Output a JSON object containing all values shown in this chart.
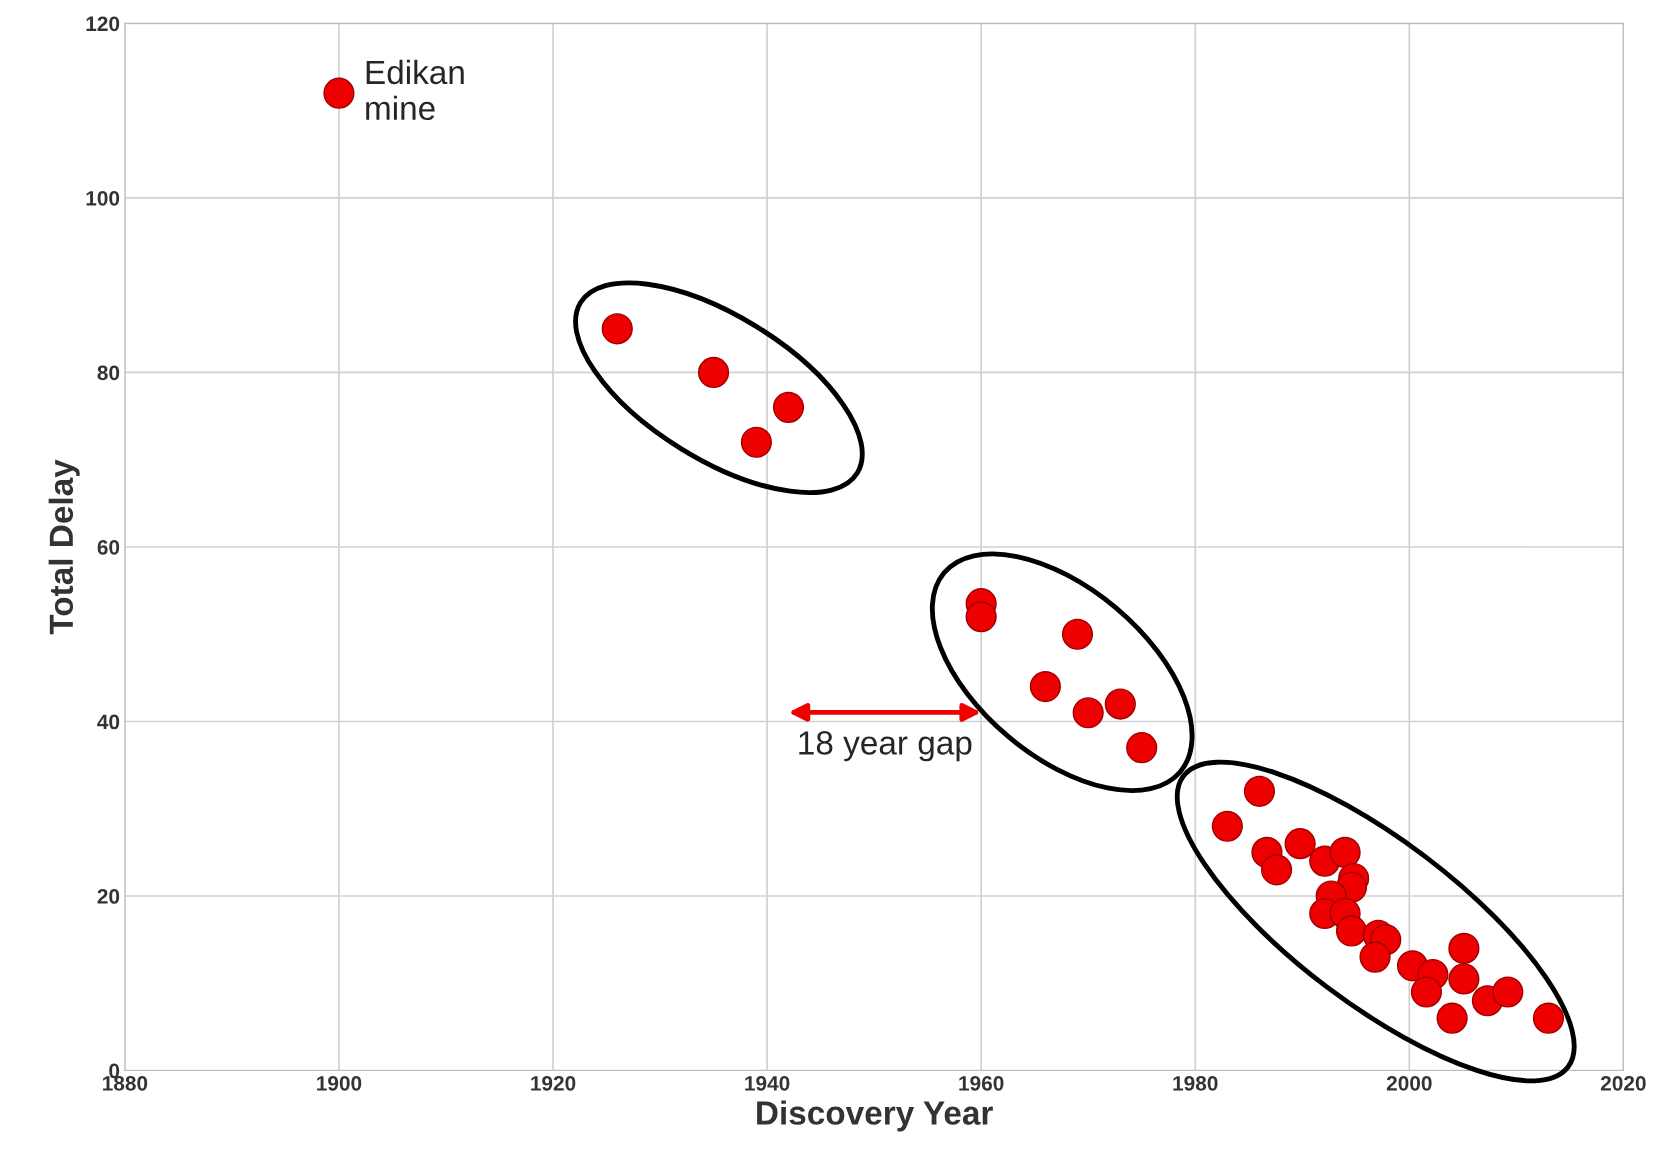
{
  "chart_data": {
    "type": "scatter",
    "xlabel": "Discovery Year",
    "ylabel": "Total Delay",
    "xlim": [
      1880,
      2020
    ],
    "ylim": [
      0,
      120
    ],
    "xticks": [
      1880,
      1900,
      1920,
      1940,
      1960,
      1980,
      2000,
      2020
    ],
    "yticks": [
      0,
      20,
      40,
      60,
      80,
      100,
      120
    ],
    "grid": true,
    "marker": "circle",
    "series": [
      {
        "color": "#ee0000",
        "x": [
          1900,
          1926,
          1935,
          1939,
          1942,
          1960,
          1960,
          1966,
          1969,
          1970,
          1973,
          1975,
          1983,
          1986,
          1986.7,
          1987.6,
          1989.8,
          1992.1,
          1994,
          1994.8,
          1994.6,
          1992.7,
          1992.1,
          1994,
          1994.6,
          1997.1,
          1997.8,
          1996.8,
          2000.3,
          2002.2,
          2001.6,
          2005.1,
          2005.1,
          2004,
          2007.3,
          2009.2,
          2013
        ],
        "values": [
          112,
          85,
          80,
          72,
          76,
          53.5,
          52,
          44,
          50,
          41,
          42,
          37,
          28,
          32,
          25,
          23,
          26,
          24,
          25,
          22,
          21,
          20,
          18,
          18,
          16,
          15.5,
          15,
          13,
          12,
          11,
          9,
          14,
          10.5,
          6,
          8,
          9,
          6
        ]
      }
    ],
    "annotations": [
      {
        "text": "Edikan\nmine",
        "x": 1900,
        "y": 112
      },
      "18 year gap"
    ]
  }
}
